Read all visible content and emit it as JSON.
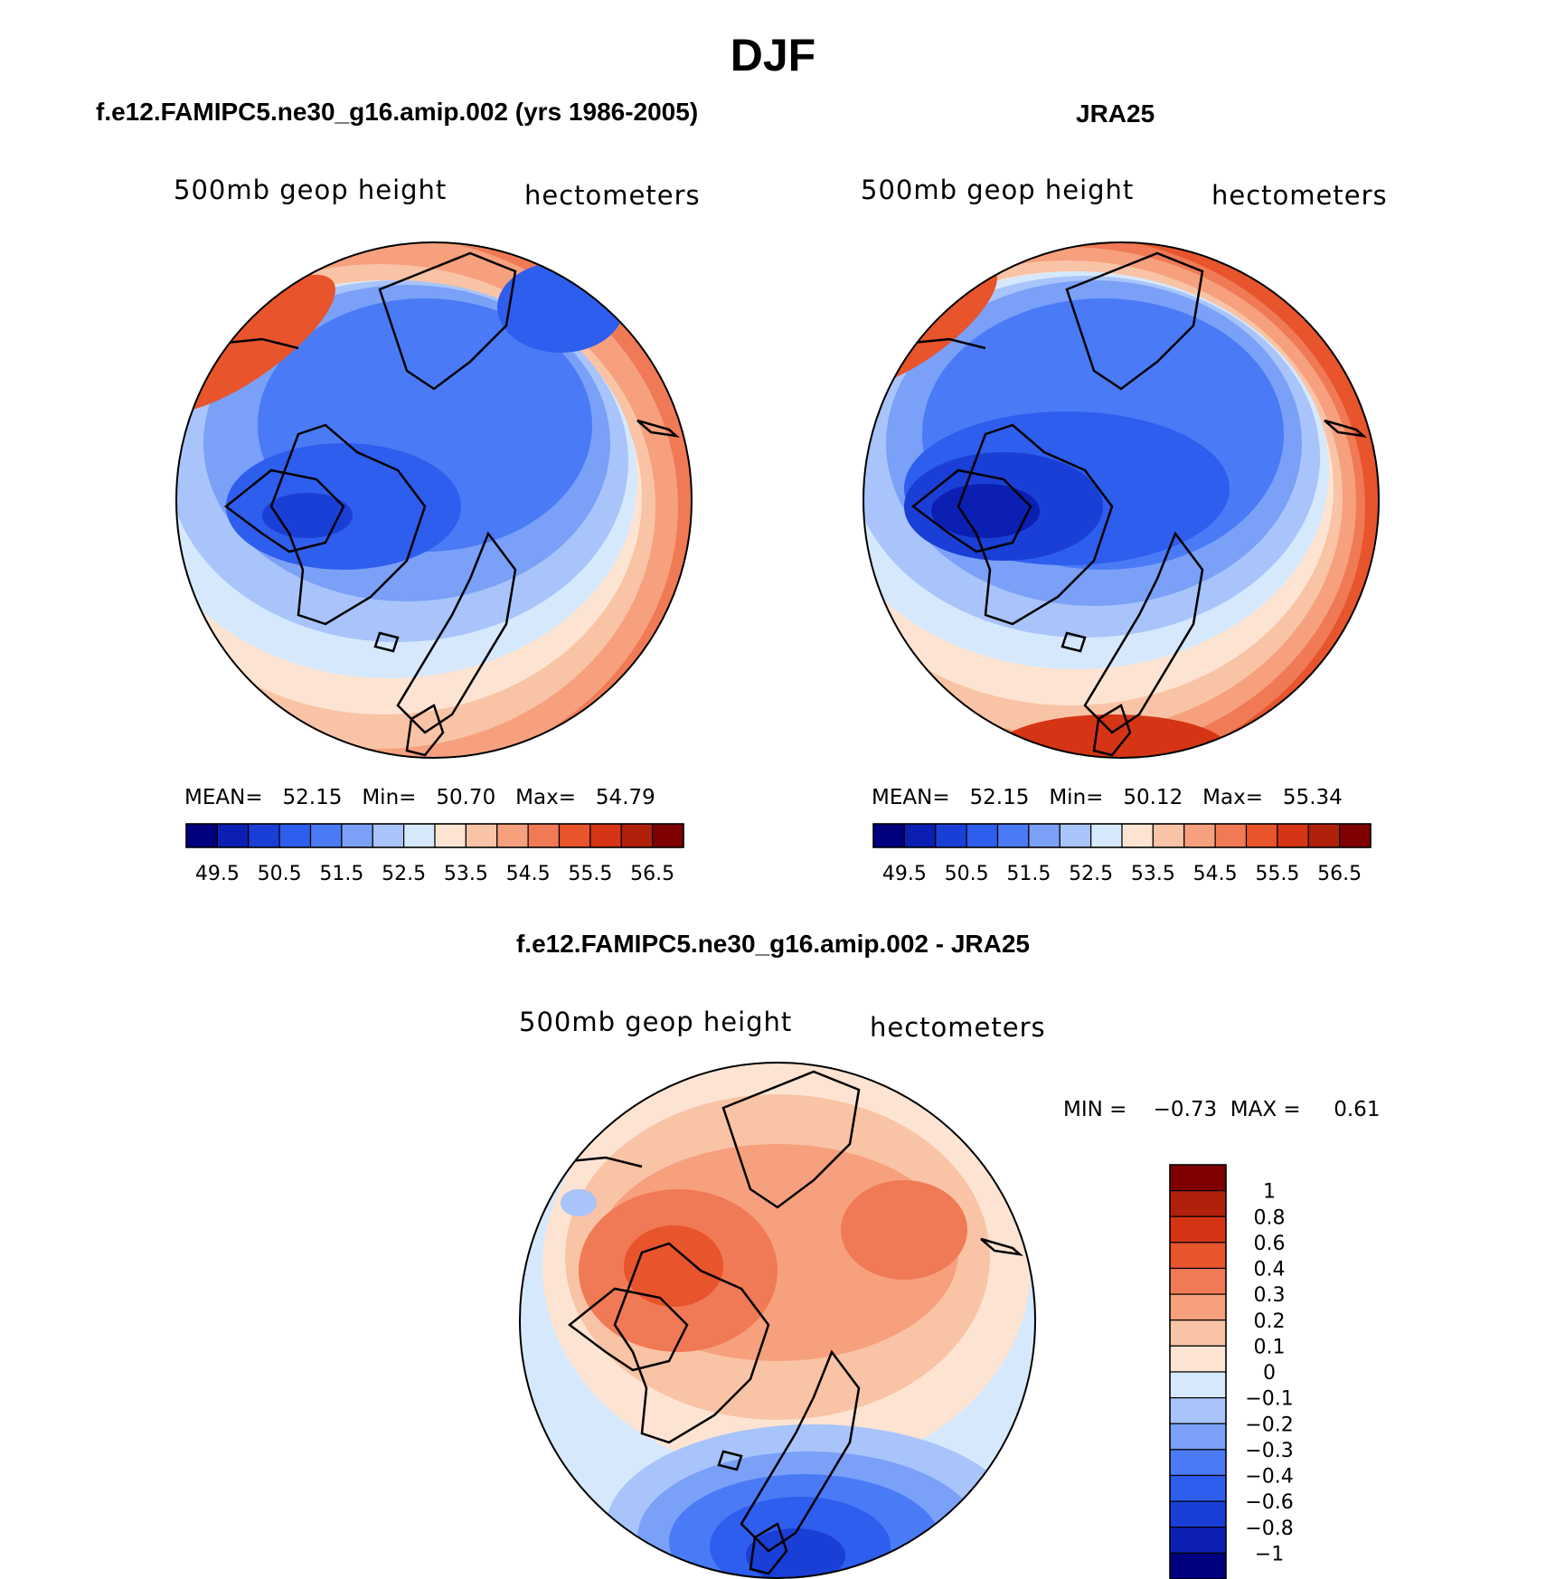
{
  "figure": {
    "title": "DJF"
  },
  "palette_abs": [
    "#00007f",
    "#0b1fb2",
    "#1a3fd6",
    "#2e5eee",
    "#4a7af6",
    "#7aa0f8",
    "#a8c4fa",
    "#d6e8fc",
    "#fde4d2",
    "#f9c3a6",
    "#f6a07e",
    "#f07a55",
    "#e8542c",
    "#d53514",
    "#b0200b",
    "#7f0000"
  ],
  "palette_diff": [
    "#00007f",
    "#0b1fb2",
    "#1a3fd6",
    "#2e5eee",
    "#4a7af6",
    "#7aa0f8",
    "#a8c4fa",
    "#d6e8fc",
    "#fde4d2",
    "#f9c3a6",
    "#f6a07e",
    "#f07a55",
    "#e8542c",
    "#d53514",
    "#b0200b",
    "#7f0000"
  ],
  "panels": {
    "model": {
      "title": "f.e12.FAMIPC5.ne30_g16.amip.002 (yrs 1986-2005)",
      "left_label": "500mb  geop  height",
      "right_label": "hectometers",
      "stats": {
        "mean_label": "MEAN=",
        "mean": "52.15",
        "min_label": "Min=",
        "min": "50.70",
        "max_label": "Max=",
        "max": "54.79"
      },
      "colorbar_labels": [
        "49.5",
        "50.5",
        "51.5",
        "52.5",
        "53.5",
        "54.5",
        "55.5",
        "56.5"
      ]
    },
    "obs": {
      "title": "JRA25",
      "left_label": "500mb  geop  height",
      "right_label": "hectometers",
      "stats": {
        "mean_label": "MEAN=",
        "mean": "52.15",
        "min_label": "Min=",
        "min": "50.12",
        "max_label": "Max=",
        "max": "55.34"
      },
      "colorbar_labels": [
        "49.5",
        "50.5",
        "51.5",
        "52.5",
        "53.5",
        "54.5",
        "55.5",
        "56.5"
      ]
    },
    "diff": {
      "title": "f.e12.FAMIPC5.ne30_g16.amip.002 - JRA25",
      "left_label": "500mb  geop  height",
      "right_label": "hectometers",
      "minmax": "MIN =    −0.73  MAX =     0.61",
      "colorbar_labels": [
        "1",
        "0.8",
        "0.6",
        "0.4",
        "0.3",
        "0.2",
        "0.1",
        "0",
        "−0.1",
        "−0.2",
        "−0.3",
        "−0.4",
        "−0.6",
        "−0.8",
        "−1"
      ]
    }
  }
}
